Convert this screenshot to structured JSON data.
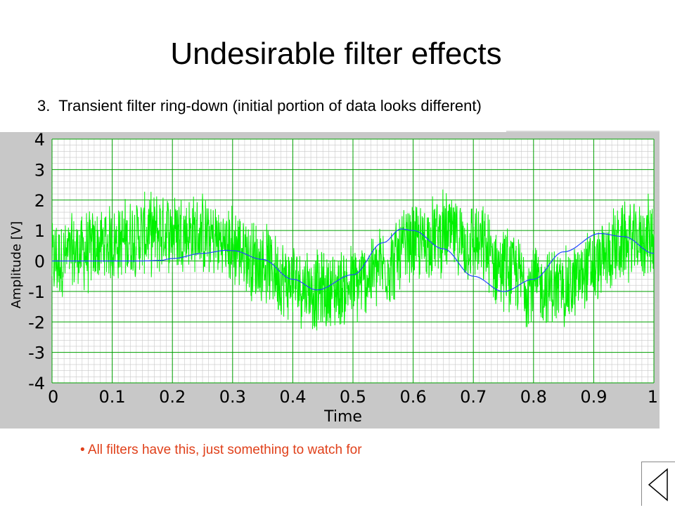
{
  "slide": {
    "title": "Undesirable filter effects",
    "subtitle_number": "3.",
    "subtitle_text": "Transient filter ring-down (initial portion of data looks different)",
    "bullet": "All filters have this, just something to watch for",
    "back_icon": "back-triangle-icon"
  },
  "colors": {
    "raw": "#00f000",
    "filtered": "#2244ff",
    "plot_bg": "#ffffff",
    "major_grid": "#00a000",
    "minor_grid": "#c8c8c8",
    "panel": "#c8c8c8",
    "bullet": "#e0401a"
  },
  "chart_data": {
    "type": "line",
    "xlabel": "Time",
    "ylabel": "Amplitude [V]",
    "xlim": [
      0,
      1
    ],
    "ylim": [
      -4,
      4
    ],
    "xticks": [
      "0",
      "0.1",
      "0.2",
      "0.3",
      "0.4",
      "0.5",
      "0.6",
      "0.7",
      "0.8",
      "0.9",
      "1"
    ],
    "yticks": [
      "4",
      "3",
      "2",
      "1",
      "0",
      "-1",
      "-2",
      "-3",
      "-4"
    ],
    "grid": true,
    "series": [
      {
        "style": "noisy raw signal (sine + noise)",
        "x": [
          0,
          0.05,
          0.1,
          0.15,
          0.2,
          0.25,
          0.3,
          0.35,
          0.4,
          0.45,
          0.5,
          0.55,
          0.6,
          0.65,
          0.7,
          0.75,
          0.8,
          0.85,
          0.9,
          0.95,
          1
        ],
        "y_center": [
          0,
          0.3,
          0.6,
          0.85,
          1.0,
          0.85,
          0.5,
          -0.1,
          -0.7,
          -1.0,
          -0.8,
          -0.2,
          0.5,
          0.9,
          0.6,
          -0.2,
          -0.8,
          -0.9,
          -0.2,
          0.6,
          0.8
        ],
        "noise_amplitude": 1.5
      },
      {
        "style": "filtered output (delayed, ring-down start)",
        "x": [
          0,
          0.05,
          0.1,
          0.15,
          0.18,
          0.2,
          0.25,
          0.29,
          0.3,
          0.35,
          0.4,
          0.44,
          0.5,
          0.55,
          0.58,
          0.6,
          0.65,
          0.7,
          0.75,
          0.8,
          0.85,
          0.91,
          0.95,
          1
        ],
        "y": [
          0,
          0,
          0,
          0,
          0.02,
          0.08,
          0.25,
          0.35,
          0.34,
          0.05,
          -0.6,
          -0.95,
          -0.45,
          0.6,
          1.05,
          1.0,
          0.4,
          -0.5,
          -1.0,
          -0.6,
          0.3,
          0.9,
          0.8,
          0.25
        ]
      }
    ]
  }
}
